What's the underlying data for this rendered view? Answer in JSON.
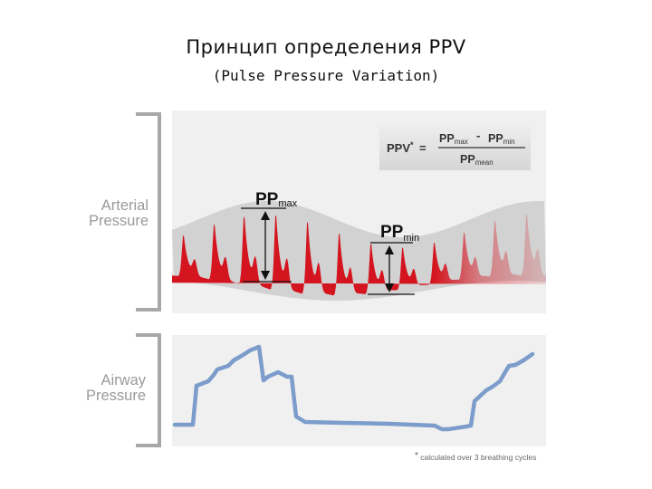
{
  "title": "Принцип определения PPV",
  "subtitle": "(Pulse Pressure Variation)",
  "arterial_label": {
    "line1": "Arterial",
    "line2": "Pressure"
  },
  "airway_label": {
    "line1": "Airway",
    "line2": "Pressure"
  },
  "formula": {
    "lhs": "PPV",
    "lhs_mark": "*",
    "equals": "=",
    "num_a": "PP",
    "num_a_sub": "max",
    "minus": "-",
    "num_b": "PP",
    "num_b_sub": "min",
    "den": "PP",
    "den_sub": "mean"
  },
  "pp_max": {
    "main": "PP",
    "sub": "max"
  },
  "pp_min": {
    "main": "PP",
    "sub": "min"
  },
  "footnote": {
    "mark": "*",
    "text": "calculated over 3 breathing cycles"
  },
  "colors": {
    "arterial_red": "#d4141e",
    "airway_blue": "#7c9ccb",
    "panel_gray": "#e7e7e7",
    "bracket_gray": "#a8a8a8"
  }
}
